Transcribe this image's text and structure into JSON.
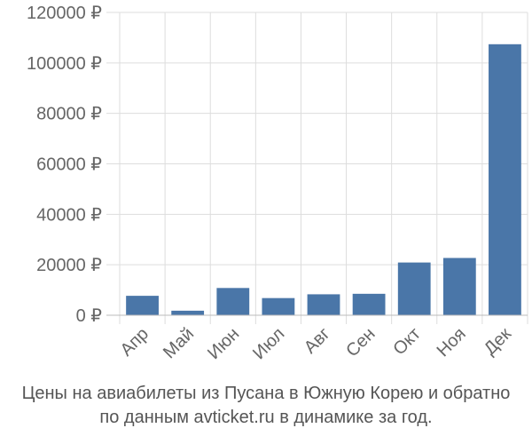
{
  "chart_data": {
    "type": "bar",
    "categories": [
      "Апр",
      "Май",
      "Июн",
      "Июл",
      "Авг",
      "Сен",
      "Окт",
      "Ноя",
      "Дек"
    ],
    "values": [
      7700,
      1800,
      10800,
      6800,
      8300,
      8500,
      20900,
      22700,
      107400
    ],
    "y_tick_labels": [
      "0 ₽",
      "20000 ₽",
      "40000 ₽",
      "60000 ₽",
      "80000 ₽",
      "100000 ₽",
      "120000 ₽"
    ],
    "y_ticks": [
      0,
      20000,
      40000,
      60000,
      80000,
      100000,
      120000
    ],
    "ylim": [
      0,
      120000
    ],
    "grid": true,
    "bar_color": "#4a76a8",
    "grid_color": "#dddddd"
  },
  "caption": {
    "line1": "Цены на авиабилеты из Пусана в Южную Корею и обратно",
    "line2": "по данным avticket.ru в динамике за год."
  }
}
